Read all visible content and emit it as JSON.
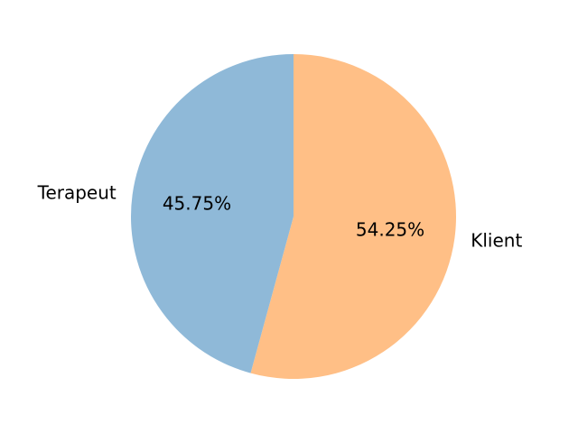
{
  "chart_data": {
    "type": "pie",
    "start": "top",
    "direction": "clockwise",
    "slices": [
      {
        "label": "Klient",
        "value": 54.25,
        "pct_label": "54.25%",
        "color": "#ffbf86"
      },
      {
        "label": "Terapeut",
        "value": 45.75,
        "pct_label": "45.75%",
        "color": "#8fb9d8"
      }
    ]
  }
}
